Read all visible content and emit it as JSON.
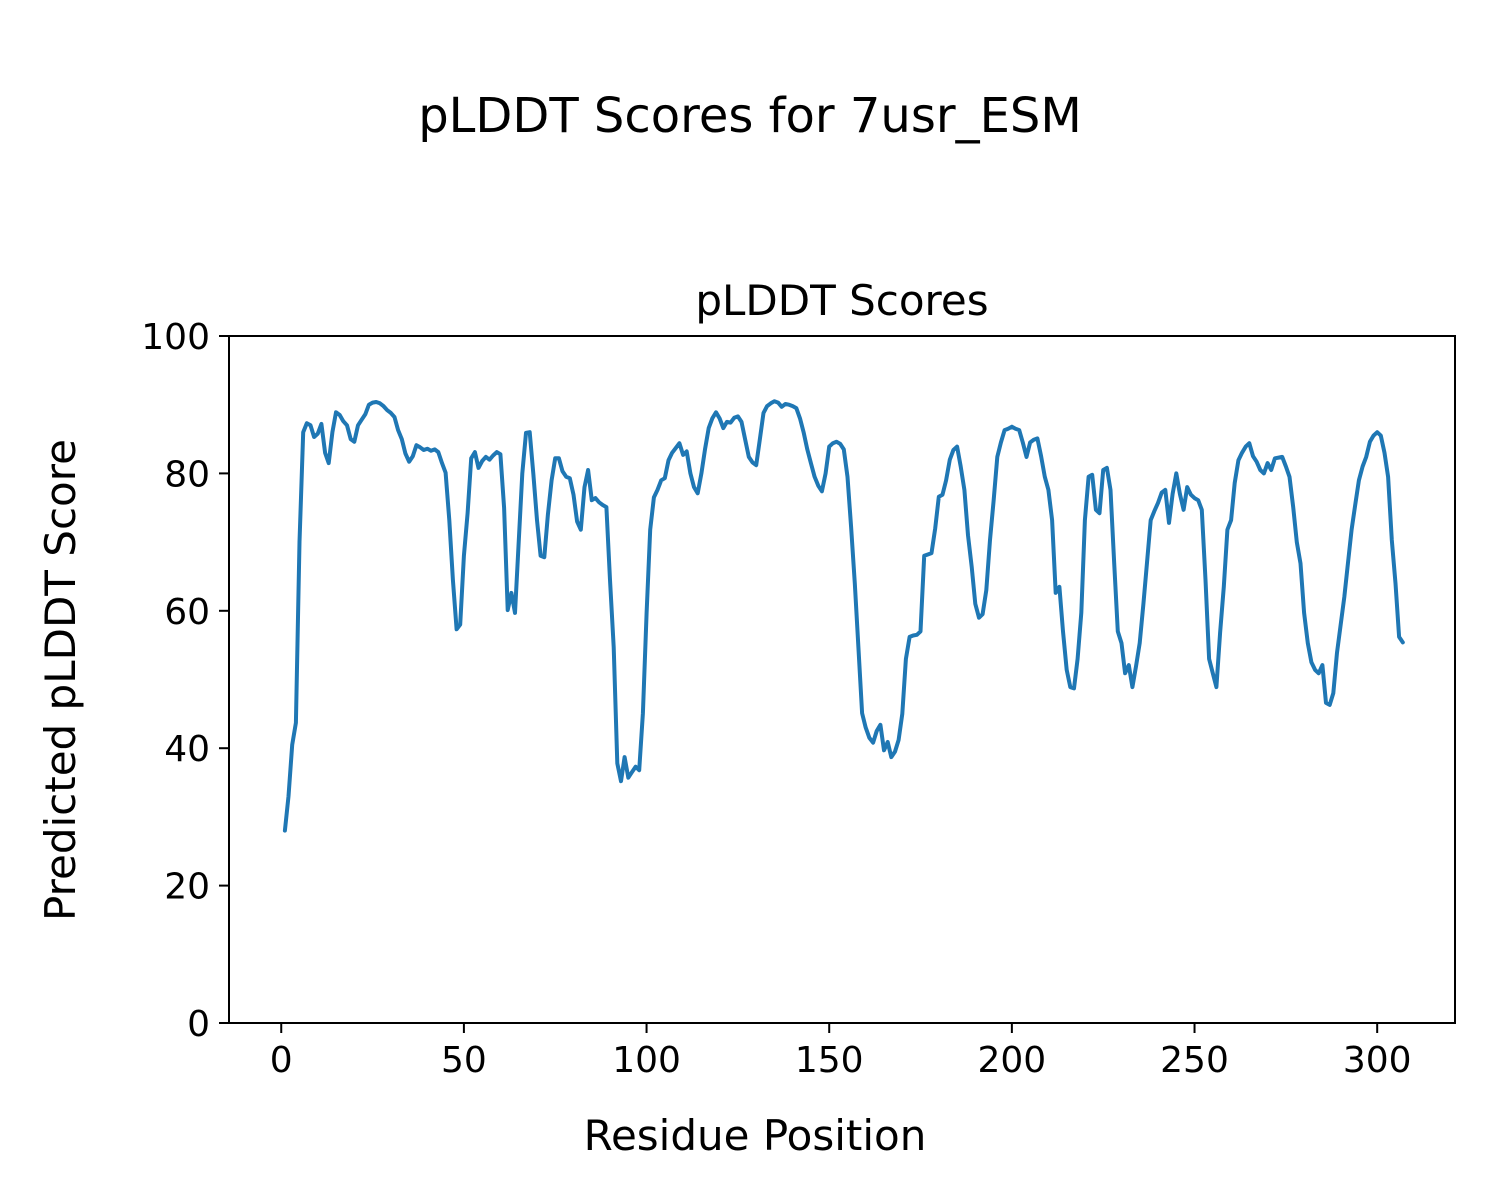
{
  "chart_data": {
    "type": "line",
    "suptitle": "pLDDT Scores for 7usr_ESM",
    "title": "pLDDT Scores",
    "xlabel": "Residue Position",
    "ylabel": "Predicted pLDDT Score",
    "xlim": [
      -14.3,
      321.3
    ],
    "ylim": [
      0,
      100
    ],
    "xticks": [
      0,
      50,
      100,
      150,
      200,
      250,
      300
    ],
    "yticks": [
      0,
      20,
      40,
      60,
      80,
      100
    ],
    "grid": false,
    "legend": "none",
    "line_color": "#1f77b4",
    "series": [
      {
        "name": "pLDDT",
        "x_start": 1,
        "x_step": 1,
        "values": [
          28,
          33,
          40.5,
          43.7,
          70,
          86,
          87.3,
          87,
          85.3,
          85.8,
          87.2,
          83,
          81.5,
          86,
          88.9,
          88.5,
          87.6,
          87,
          85,
          84.6,
          87,
          87.8,
          88.6,
          90,
          90.3,
          90.4,
          90.2,
          89.8,
          89.2,
          88.8,
          88.2,
          86.3,
          85,
          82.9,
          81.7,
          82.5,
          84.1,
          83.8,
          83.4,
          83.6,
          83.3,
          83.5,
          83.1,
          81.5,
          80.1,
          73.2,
          64.5,
          57.3,
          58,
          68,
          74.2,
          82.2,
          83.1,
          80.8,
          81.8,
          82.4,
          82,
          82.6,
          83.1,
          82.8,
          75,
          60.1,
          62.6,
          59.7,
          70,
          80,
          85.9,
          86,
          80,
          73.2,
          68,
          67.8,
          74,
          79,
          82.2,
          82.2,
          80.3,
          79.5,
          79.3,
          76.9,
          73,
          71.8,
          78,
          80.5,
          76.1,
          76.4,
          75.8,
          75.4,
          75.1,
          64.5,
          54.7,
          37.8,
          35.2,
          38.7,
          35.7,
          36.5,
          37.3,
          36.8,
          45.1,
          59.7,
          71.8,
          76.5,
          77.6,
          79,
          79.3,
          81.9,
          83,
          83.7,
          84.4,
          82.7,
          83.2,
          80,
          78,
          77.1,
          80,
          83.5,
          86.6,
          88,
          88.9,
          88,
          86.6,
          87.5,
          87.4,
          88.1,
          88.3,
          87.5,
          84.9,
          82.4,
          81.6,
          81.2,
          84.9,
          88.8,
          89.8,
          90.2,
          90.5,
          90.3,
          89.7,
          90.1,
          90,
          89.8,
          89.5,
          88,
          86,
          83.5,
          81.5,
          79.5,
          78.2,
          77.4,
          80,
          83.9,
          84.4,
          84.6,
          84.3,
          83.5,
          79.5,
          72.2,
          64,
          54.7,
          45.1,
          43,
          41.5,
          40.8,
          42.5,
          43.4,
          39.7,
          40.9,
          38.7,
          39.5,
          41.2,
          45,
          53,
          56.2,
          56.4,
          56.5,
          57,
          68,
          68.2,
          68.4,
          72,
          76.6,
          76.9,
          79,
          82,
          83.4,
          83.9,
          81,
          77.6,
          71,
          66.4,
          61,
          59,
          59.5,
          63,
          70.3,
          76,
          82.4,
          84.5,
          86.3,
          86.5,
          86.8,
          86.5,
          86.3,
          84.5,
          82.4,
          84.5,
          84.9,
          85.1,
          82.5,
          79.5,
          77.6,
          73.2,
          62.6,
          63.5,
          57,
          51.4,
          48.9,
          48.7,
          53,
          59.7,
          73.2,
          79.5,
          79.8,
          74.7,
          74.2,
          80.5,
          80.8,
          77.6,
          66.9,
          57,
          55.3,
          50.9,
          52.1,
          48.9,
          52,
          55.3,
          61,
          67,
          73.2,
          74.5,
          75.7,
          77.2,
          77.6,
          72.8,
          77,
          80,
          77,
          74.7,
          78,
          76.9,
          76.4,
          76.1,
          74.7,
          64.5,
          53,
          50.9,
          48.9,
          56.8,
          63.5,
          71.8,
          73.2,
          78.6,
          81.9,
          83,
          83.9,
          84.4,
          82.5,
          81.7,
          80.5,
          80,
          81.5,
          80.5,
          82.2,
          82.3,
          82.4,
          81,
          79.5,
          75.1,
          70,
          66.9,
          59.7,
          55.3,
          52.5,
          51.4,
          50.9,
          52.1,
          46.6,
          46.3,
          48,
          53.9,
          58,
          62,
          67,
          71.8,
          75.5,
          79,
          81,
          82.4,
          84.6,
          85.5,
          86,
          85.5,
          83,
          79.5,
          70.3,
          64,
          56.2,
          55.4
        ]
      }
    ]
  }
}
